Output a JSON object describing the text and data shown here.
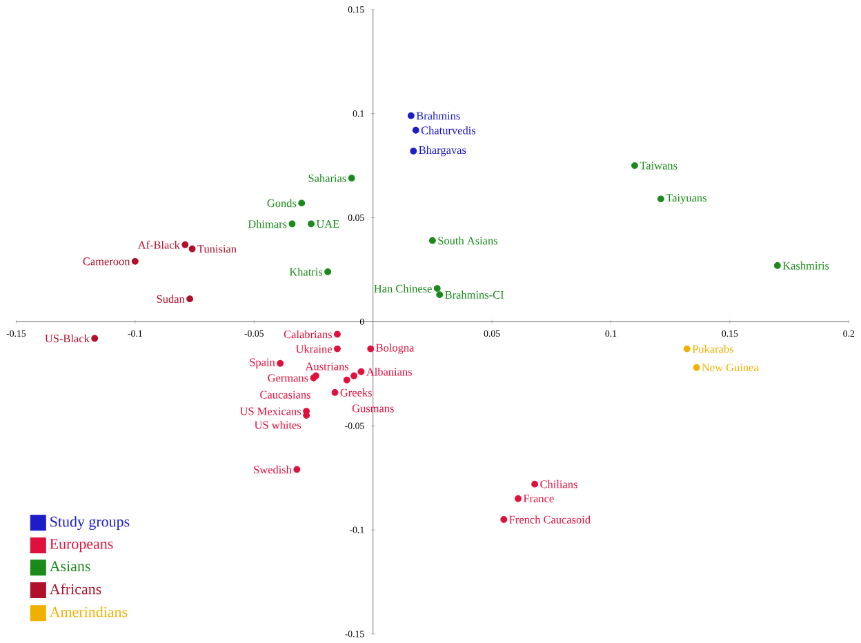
{
  "chart_data": {
    "type": "scatter",
    "xlim": [
      -0.15,
      0.2
    ],
    "ylim": [
      -0.15,
      0.15
    ],
    "xticks": [
      -0.15,
      -0.1,
      -0.05,
      0.05,
      0.1,
      0.15,
      0.2
    ],
    "yticks": [
      -0.15,
      -0.1,
      -0.05,
      0,
      0.05,
      0.1,
      0.15
    ],
    "grid": false,
    "legend": "bottom left",
    "series": [
      {
        "name": "Study groups",
        "color": "#1c1cc8",
        "x": [
          0.016,
          0.018,
          0.017
        ],
        "values": [
          0.099,
          0.092,
          0.082
        ]
      },
      {
        "name": "Europeans",
        "color": "#e0103c",
        "x": [
          -0.015,
          -0.015,
          -0.001,
          -0.039,
          -0.005,
          -0.025,
          -0.024,
          -0.008,
          -0.016,
          -0.011,
          -0.028,
          -0.028,
          -0.032,
          0.068,
          0.061,
          0.055
        ],
        "values": [
          -0.006,
          -0.013,
          -0.013,
          -0.02,
          -0.024,
          -0.027,
          -0.026,
          -0.026,
          -0.034,
          -0.028,
          -0.043,
          -0.045,
          -0.071,
          -0.078,
          -0.085,
          -0.095
        ]
      },
      {
        "name": "Asians",
        "color": "#1a8a1a",
        "x": [
          -0.009,
          -0.03,
          -0.034,
          -0.026,
          -0.019,
          0.025,
          0.027,
          0.028,
          0.11,
          0.121,
          0.17
        ],
        "values": [
          0.069,
          0.057,
          0.047,
          0.047,
          0.024,
          0.039,
          0.016,
          0.013,
          0.075,
          0.059,
          0.027
        ]
      },
      {
        "name": "Africans",
        "color": "#b0102a",
        "x": [
          -0.079,
          -0.076,
          -0.1,
          -0.077,
          -0.117
        ],
        "values": [
          0.037,
          0.035,
          0.029,
          0.011,
          -0.008
        ]
      },
      {
        "name": "Amerindians",
        "color": "#f0b000",
        "x": [
          0.132,
          0.136
        ],
        "values": [
          -0.013,
          -0.022
        ]
      }
    ],
    "annotations": [
      {
        "text": "Brahmins",
        "x": 0.016,
        "y": 0.099
      },
      {
        "text": "Chaturvedis",
        "x": 0.018,
        "y": 0.092
      },
      {
        "text": "Bhargavas",
        "x": 0.017,
        "y": 0.082
      },
      {
        "text": "Calabrians",
        "x": -0.015,
        "y": -0.006
      },
      {
        "text": "Ukraine",
        "x": -0.015,
        "y": -0.013
      },
      {
        "text": "Bologna",
        "x": -0.001,
        "y": -0.013
      },
      {
        "text": "Spain",
        "x": -0.039,
        "y": -0.02
      },
      {
        "text": "Albanians",
        "x": -0.005,
        "y": -0.024
      },
      {
        "text": "Germans",
        "x": -0.025,
        "y": -0.027
      },
      {
        "text": "Caucasians",
        "x": -0.024,
        "y": -0.026
      },
      {
        "text": "Austrians",
        "x": -0.008,
        "y": -0.026
      },
      {
        "text": "Greeks",
        "x": -0.016,
        "y": -0.034
      },
      {
        "text": "Gusmans",
        "x": -0.011,
        "y": -0.028
      },
      {
        "text": "US Mexicans",
        "x": -0.028,
        "y": -0.043
      },
      {
        "text": "US whites",
        "x": -0.028,
        "y": -0.045
      },
      {
        "text": "Swedish",
        "x": -0.032,
        "y": -0.071
      },
      {
        "text": "Chilians",
        "x": 0.068,
        "y": -0.078
      },
      {
        "text": "France",
        "x": 0.061,
        "y": -0.085
      },
      {
        "text": "French Caucasoid",
        "x": 0.055,
        "y": -0.095
      },
      {
        "text": "Saharias",
        "x": -0.009,
        "y": 0.069
      },
      {
        "text": "Gonds",
        "x": -0.03,
        "y": 0.057
      },
      {
        "text": "Dhimars",
        "x": -0.034,
        "y": 0.047
      },
      {
        "text": "UAE",
        "x": -0.026,
        "y": 0.047
      },
      {
        "text": "Khatris",
        "x": -0.019,
        "y": 0.024
      },
      {
        "text": "South Asians",
        "x": 0.025,
        "y": 0.039
      },
      {
        "text": "Han Chinese",
        "x": 0.027,
        "y": 0.016
      },
      {
        "text": "Brahmins-CI",
        "x": 0.028,
        "y": 0.013
      },
      {
        "text": "Taiwans",
        "x": 0.11,
        "y": 0.075
      },
      {
        "text": "Taiyuans",
        "x": 0.121,
        "y": 0.059
      },
      {
        "text": "Kashmiris",
        "x": 0.17,
        "y": 0.027
      },
      {
        "text": "Af-Black",
        "x": -0.079,
        "y": 0.037
      },
      {
        "text": "Tunisian",
        "x": -0.076,
        "y": 0.035
      },
      {
        "text": "Cameroon",
        "x": -0.1,
        "y": 0.029
      },
      {
        "text": "Sudan",
        "x": -0.077,
        "y": 0.011
      },
      {
        "text": "US-Black",
        "x": -0.117,
        "y": -0.008
      },
      {
        "text": "Pukarabs",
        "x": 0.132,
        "y": -0.013
      },
      {
        "text": "New Guinea",
        "x": 0.136,
        "y": -0.022
      }
    ]
  }
}
